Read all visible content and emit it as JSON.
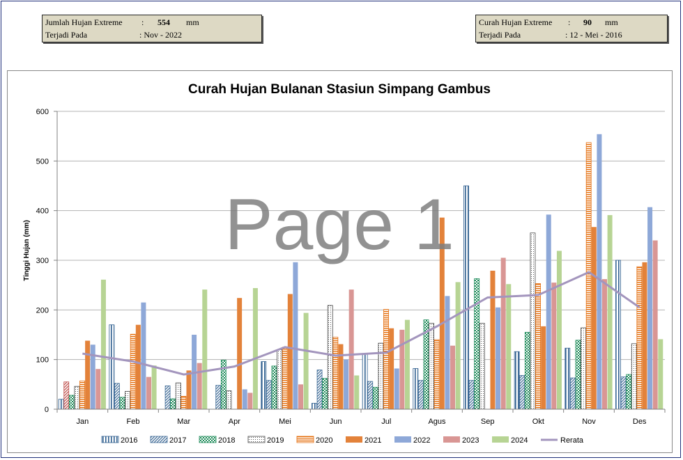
{
  "info_left": {
    "label1": "Jumlah Hujan Extreme",
    "colon1": ":",
    "value1": "554",
    "unit1": "mm",
    "label2": "Terjadi Pada",
    "value2": ": Nov - 2022"
  },
  "info_right": {
    "label1": "Curah Hujan Extreme",
    "colon1": ":",
    "value1": "90",
    "unit1": "mm",
    "label2": "Terjadi Pada",
    "value2": ": 12 - Mei - 2016"
  },
  "watermark": "Page 1",
  "colors": {
    "2016": "#4f81bd",
    "2017": "#4f81bd",
    "2018": "#1e8c5a",
    "2019": "#555555",
    "2020": "#e46c0a",
    "2021": "#e3823a",
    "2022": "#8ea8d8",
    "2023": "#d99694",
    "2024": "#b7d494",
    "Rerata": "#a395bd",
    "2016_first": "#c0504d"
  },
  "chart_data": {
    "type": "bar",
    "title": "Curah Hujan Bulanan Stasiun Simpang Gambus",
    "ylabel": "Tinggi Hujan  (mm)",
    "xlabel": "",
    "ylim": [
      0,
      600
    ],
    "yticks": [
      "0",
      "100",
      "200",
      "300",
      "400",
      "500",
      "600"
    ],
    "grid": true,
    "legend_position": "bottom",
    "categories": [
      "Jan",
      "Feb",
      "Mar",
      "Apr",
      "Mei",
      "Jun",
      "Jul",
      "Agus",
      "Sep",
      "Okt",
      "Nov",
      "Des"
    ],
    "series": [
      {
        "name": "2016",
        "values": [
          20,
          170,
          0,
          0,
          96,
          12,
          112,
          82,
          450,
          116,
          123,
          300
        ]
      },
      {
        "name": "2017",
        "values": [
          55,
          52,
          47,
          48,
          58,
          79,
          56,
          58,
          58,
          68,
          63,
          65
        ]
      },
      {
        "name": "2018",
        "values": [
          28,
          24,
          21,
          99,
          87,
          62,
          44,
          180,
          263,
          155,
          139,
          70
        ]
      },
      {
        "name": "2019",
        "values": [
          46,
          36,
          53,
          37,
          120,
          209,
          133,
          173,
          173,
          355,
          164,
          132
        ]
      },
      {
        "name": "2020",
        "values": [
          57,
          151,
          26,
          0,
          125,
          145,
          201,
          140,
          0,
          253,
          537,
          287
        ]
      },
      {
        "name": "2021",
        "values": [
          138,
          170,
          78,
          224,
          232,
          131,
          163,
          386,
          279,
          167,
          367,
          296
        ]
      },
      {
        "name": "2022",
        "values": [
          130,
          215,
          150,
          40,
          296,
          100,
          82,
          228,
          205,
          392,
          554,
          407
        ]
      },
      {
        "name": "2023",
        "values": [
          81,
          65,
          93,
          33,
          50,
          241,
          160,
          128,
          305,
          255,
          262,
          340
        ]
      },
      {
        "name": "2024",
        "values": [
          261,
          88,
          241,
          244,
          194,
          68,
          180,
          256,
          252,
          319,
          391,
          141
        ]
      },
      {
        "name": "Rerata",
        "type": "line",
        "values": [
          112,
          96,
          70,
          86,
          125,
          108,
          114,
          167,
          225,
          230,
          276,
          205
        ]
      }
    ]
  }
}
